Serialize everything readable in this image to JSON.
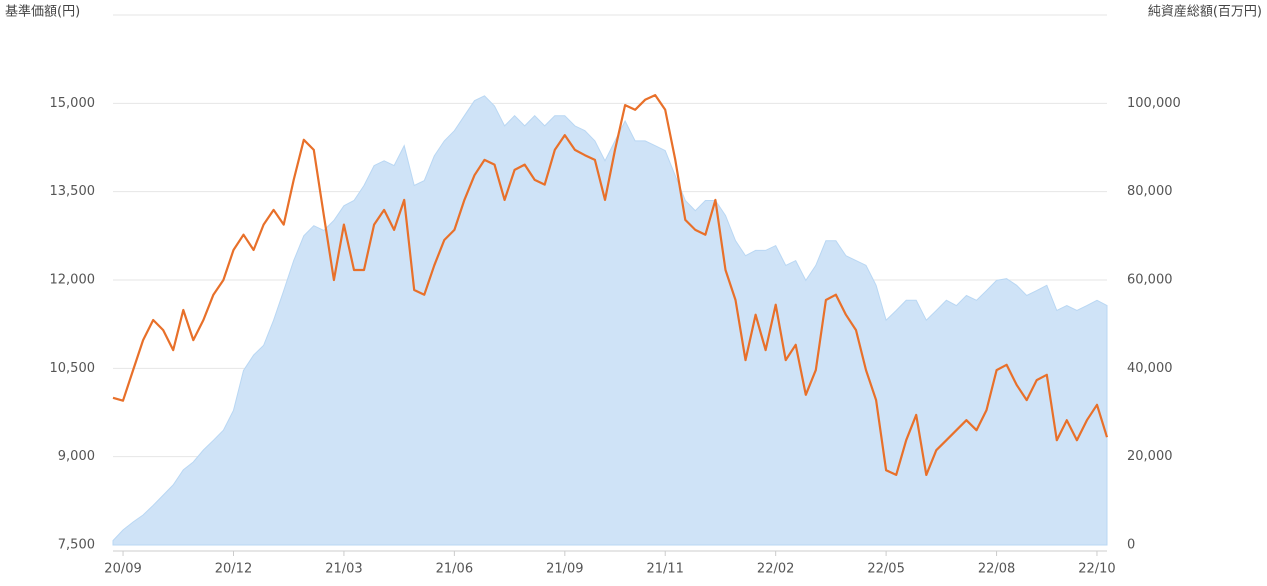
{
  "chart_data": {
    "type": "line",
    "y_title": "基準価額(円)",
    "y2_title": "純資産総額(百万円)",
    "categories": [
      null,
      "20/09",
      null,
      null,
      null,
      null,
      null,
      null,
      null,
      null,
      null,
      null,
      "20/12",
      null,
      null,
      null,
      null,
      null,
      null,
      null,
      null,
      null,
      null,
      "21/03",
      null,
      null,
      null,
      null,
      null,
      null,
      null,
      null,
      null,
      null,
      "21/06",
      null,
      null,
      null,
      null,
      null,
      null,
      null,
      null,
      null,
      null,
      "21/09",
      null,
      null,
      null,
      null,
      null,
      null,
      null,
      null,
      null,
      "21/11",
      null,
      null,
      null,
      null,
      null,
      null,
      null,
      null,
      null,
      null,
      "22/02",
      null,
      null,
      null,
      null,
      null,
      null,
      null,
      null,
      null,
      null,
      "22/05",
      null,
      null,
      null,
      null,
      null,
      null,
      null,
      null,
      null,
      null,
      "22/08",
      null,
      null,
      null,
      null,
      null,
      null,
      null,
      null,
      null,
      "22/10",
      null
    ],
    "ylim": [
      7500,
      16500
    ],
    "yticks": [
      {
        "value": 7500,
        "label": "7,500"
      },
      {
        "value": 9000,
        "label": "9,000"
      },
      {
        "value": 10500,
        "label": "10,500"
      },
      {
        "value": 12000,
        "label": "12,000"
      },
      {
        "value": 13500,
        "label": "13,500"
      },
      {
        "value": 15000,
        "label": "15,000"
      }
    ],
    "y2lim": [
      0,
      120000
    ],
    "y2ticks": [
      0,
      {
        "value": 20000,
        "label": "20,000"
      },
      {
        "value": 40000,
        "label": "40,000"
      },
      {
        "value": 60000,
        "label": "60,000"
      },
      {
        "value": 80000,
        "label": "80,000"
      },
      {
        "value": 100000,
        "label": "100,000"
      }
    ],
    "grid": true,
    "series": [
      {
        "type": "area",
        "axis": "y2",
        "color": "#cfe3f7",
        "values": [
          1000,
          3400,
          5200,
          6800,
          9000,
          11300,
          13600,
          17000,
          18800,
          21500,
          23700,
          26000,
          30500,
          39500,
          43000,
          45200,
          50900,
          57600,
          64400,
          70000,
          72300,
          71200,
          73500,
          76800,
          78000,
          81400,
          85900,
          87000,
          85900,
          90400,
          81400,
          82500,
          88100,
          91500,
          93800,
          97200,
          100600,
          101700,
          99400,
          94900,
          97200,
          94900,
          97200,
          94900,
          97200,
          97200,
          94900,
          93800,
          91500,
          87000,
          91500,
          96000,
          91500,
          91500,
          90400,
          89300,
          83600,
          78000,
          75700,
          78000,
          78000,
          74600,
          68900,
          65500,
          66700,
          66700,
          67800,
          63300,
          64400,
          59900,
          63300,
          68900,
          68900,
          65500,
          64400,
          63300,
          58800,
          50900,
          53100,
          55400,
          55400,
          50900,
          53100,
          55400,
          54200,
          56500,
          55400,
          57600,
          59900,
          60300,
          58800,
          56500,
          57600,
          58800,
          53100,
          54200,
          53100,
          54200,
          55400,
          54200
        ]
      },
      {
        "type": "line",
        "color": "#e8702a",
        "values": [
          10000,
          9950,
          10470,
          10980,
          11320,
          11150,
          10810,
          11490,
          10980,
          11320,
          11750,
          12000,
          12510,
          12770,
          12510,
          12940,
          13190,
          12940,
          13700,
          14380,
          14210,
          13100,
          12000,
          12940,
          12170,
          12170,
          12940,
          13190,
          12850,
          13360,
          11830,
          11750,
          12250,
          12680,
          12850,
          13360,
          13780,
          14040,
          13960,
          13360,
          13870,
          13960,
          13700,
          13620,
          14210,
          14460,
          14210,
          14120,
          14040,
          13360,
          14210,
          14970,
          14890,
          15060,
          15140,
          14890,
          14040,
          13020,
          12850,
          12770,
          13360,
          12170,
          11660,
          10640,
          11410,
          10810,
          11580,
          10640,
          10900,
          10050,
          10470,
          11660,
          11750,
          11410,
          11150,
          10470,
          9960,
          8770,
          8690,
          9280,
          9710,
          8690,
          9110,
          9280,
          9450,
          9620,
          9450,
          9790,
          10470,
          10560,
          10220,
          9960,
          10300,
          10390,
          9280,
          9620,
          9280,
          9620,
          9880,
          9330
        ]
      }
    ]
  }
}
